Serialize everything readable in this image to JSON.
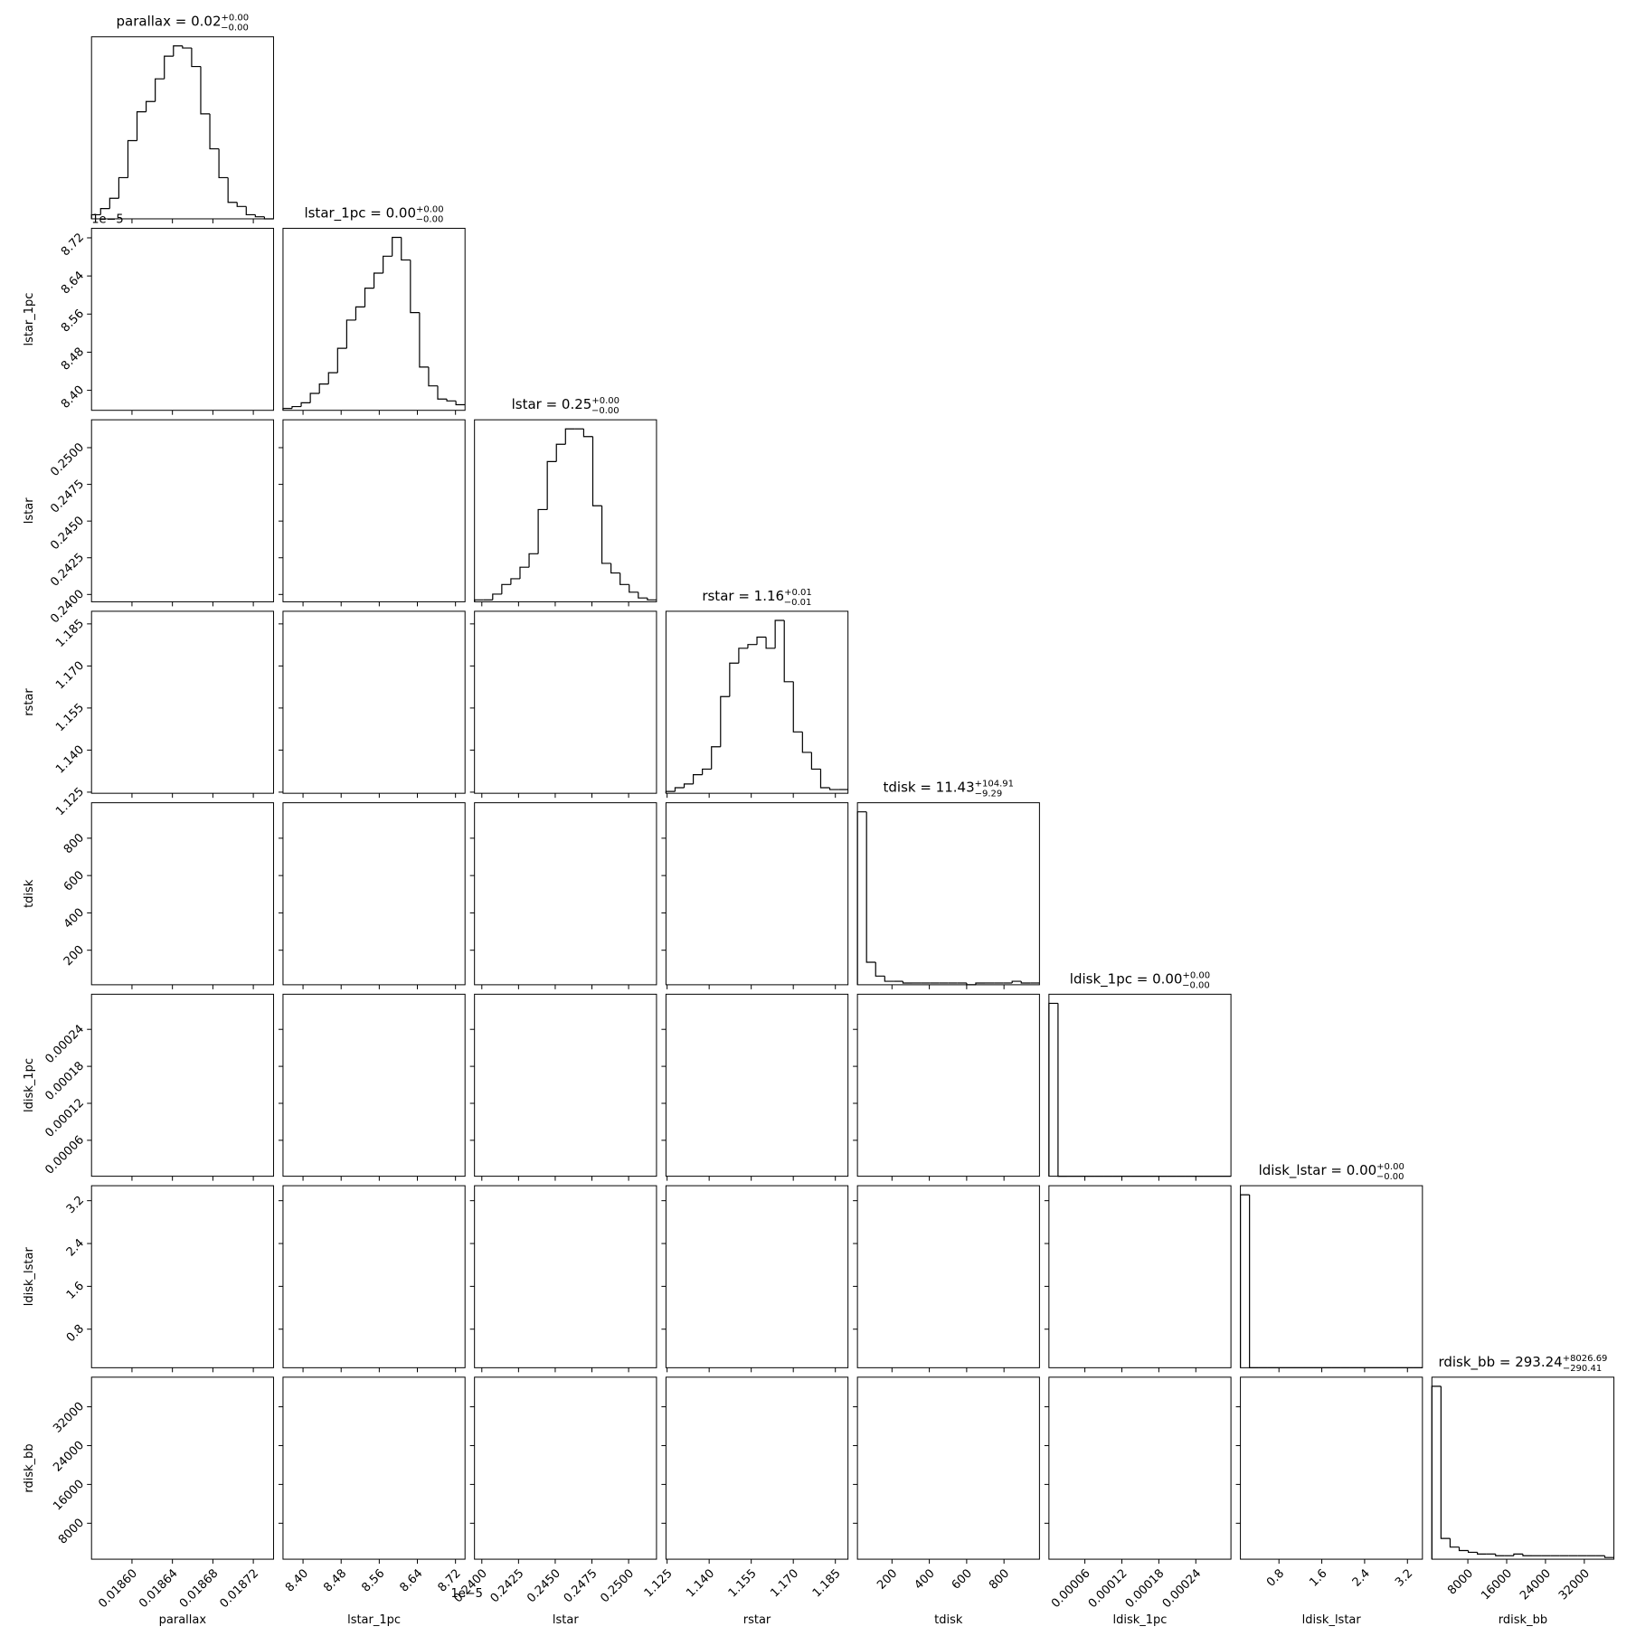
{
  "chart_data": {
    "type": "corner",
    "params": [
      {
        "name": "parallax",
        "title": {
          "main": "parallax = 0.02",
          "plus": "+0.00",
          "minus": "−0.00"
        },
        "lim": [
          0.01856,
          0.01874
        ],
        "ticks": [
          {
            "value": 0.0186,
            "label": "0.01860"
          },
          {
            "value": 0.01864,
            "label": "0.01864"
          },
          {
            "value": 0.01868,
            "label": "0.01868"
          },
          {
            "value": 0.01872,
            "label": "0.01872"
          }
        ],
        "hist": [
          2,
          5,
          10,
          20,
          38,
          52,
          57,
          68,
          79,
          84,
          83,
          74,
          51,
          34,
          20,
          8,
          6,
          2,
          1,
          0
        ]
      },
      {
        "name": "lstar_1pc",
        "offset": "1e−5",
        "title": {
          "main": "lstar_1pc = 0.00",
          "plus": "+0.00",
          "minus": "−0.00"
        },
        "lim": [
          8.358,
          8.74
        ],
        "ticks": [
          {
            "value": 8.4,
            "label": "8.40"
          },
          8.48,
          8.56,
          8.64,
          8.72
        ],
        "hist": [
          1,
          2,
          4,
          9,
          14,
          20,
          33,
          48,
          55,
          65,
          73,
          82,
          92,
          80,
          52,
          23,
          13,
          6,
          5,
          3
        ]
      },
      {
        "name": "lstar",
        "title": {
          "main": "lstar = 0.25",
          "plus": "+0.00",
          "minus": "−0.00"
        },
        "lim": [
          0.2395,
          0.2519
        ],
        "ticks": [
          {
            "value": 0.24,
            "label": "0.2400"
          },
          0.2425,
          {
            "value": 0.245,
            "label": "0.2450"
          },
          0.2475,
          {
            "value": 0.25,
            "label": "0.2500"
          }
        ],
        "hist": [
          1,
          1,
          4,
          9,
          12,
          18,
          25,
          48,
          73,
          82,
          90,
          90,
          86,
          50,
          20,
          15,
          9,
          5,
          2,
          1
        ]
      },
      {
        "name": "rstar",
        "title": {
          "main": "rstar = 1.16",
          "plus": "+0.01",
          "minus": "−0.01"
        },
        "lim": [
          1.1246,
          1.1895
        ],
        "ticks": [
          1.125,
          {
            "value": 1.14,
            "label": "1.140"
          },
          1.155,
          {
            "value": 1.17,
            "label": "1.170"
          },
          1.185
        ],
        "hist": [
          1,
          3,
          5,
          10,
          13,
          25,
          52,
          70,
          78,
          80,
          84,
          78,
          93,
          60,
          33,
          22,
          13,
          3,
          2,
          2
        ]
      },
      {
        "name": "tdisk",
        "title": {
          "main": "tdisk = 11.43",
          "plus": "+104.91",
          "minus": "−9.29"
        },
        "lim": [
          15,
          990
        ],
        "ticks": [
          200,
          400,
          600,
          800
        ],
        "hist": [
          100,
          13,
          5,
          2,
          2,
          1,
          1,
          1,
          1,
          1,
          1,
          1,
          0,
          1,
          1,
          1,
          1,
          2,
          1,
          1
        ]
      },
      {
        "name": "ldisk_1pc",
        "title": {
          "main": "ldisk_1pc = 0.00",
          "plus": "+0.00",
          "minus": "−0.00"
        },
        "lim": [
          1.7e-06,
          0.000297
        ],
        "ticks": [
          6e-05,
          0.00012,
          0.00018,
          0.00024
        ],
        "hist": [
          100,
          0,
          0,
          0,
          0,
          0,
          0,
          0,
          0,
          0,
          0,
          0,
          0,
          0,
          0,
          0,
          0,
          0,
          0,
          0
        ]
      },
      {
        "name": "ldisk_lstar",
        "title": {
          "main": "ldisk_lstar = 0.00",
          "plus": "+0.00",
          "minus": "−0.00"
        },
        "lim": [
          0.08,
          3.48
        ],
        "ticks": [
          0.8,
          1.6,
          2.4,
          3.2
        ],
        "hist": [
          100,
          0,
          0,
          0,
          0,
          0,
          0,
          0,
          0,
          0,
          0,
          0,
          0,
          0,
          0,
          0,
          0,
          0,
          0,
          0
        ]
      },
      {
        "name": "rdisk_bb",
        "title": {
          "main": "rdisk_bb = 293.24",
          "plus": "+8026.69",
          "minus": "−290.41"
        },
        "lim": [
          590,
          38100
        ],
        "ticks": [
          8000,
          16000,
          24000,
          32000
        ],
        "hist": [
          100,
          12,
          7,
          5,
          4,
          3,
          3,
          2,
          2,
          3,
          2,
          2,
          2,
          2,
          2,
          2,
          2,
          2,
          2,
          1
        ]
      }
    ]
  }
}
